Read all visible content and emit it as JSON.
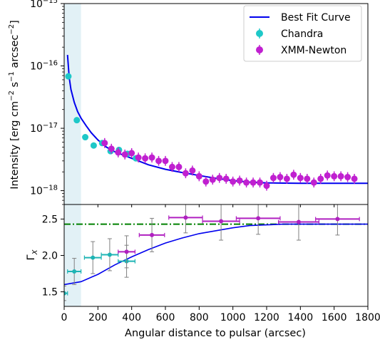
{
  "chart_data": [
    {
      "type": "scatter",
      "panel": "top",
      "xlabel": "",
      "ylabel": "Intensity [erg cm⁻² s⁻¹ arcsec⁻²]",
      "ylabel_parts": [
        "Intensity [erg cm",
        "−2",
        " s",
        "−1",
        " arcsec",
        "−2",
        "]"
      ],
      "yscale": "log",
      "xlim": [
        0,
        1800
      ],
      "ylim": [
        6e-19,
        1e-15
      ],
      "ytick_labels": [
        {
          "value": 1e-18,
          "base": "10",
          "exp": "−18"
        },
        {
          "value": 1e-17,
          "base": "10",
          "exp": "−17"
        },
        {
          "value": 1e-16,
          "base": "10",
          "exp": "−16"
        },
        {
          "value": 1e-15,
          "base": "10",
          "exp": "−15"
        }
      ],
      "shaded_region": [
        0,
        100
      ],
      "legend_position": "top-right",
      "series": [
        {
          "name": "Best Fit Curve",
          "kind": "line",
          "color": "#0000ee",
          "x": [
            20,
            30,
            40,
            60,
            80,
            100,
            130,
            160,
            200,
            250,
            300,
            400,
            500,
            600,
            700,
            800,
            900,
            1000,
            1100,
            1200,
            1300,
            1400,
            1500,
            1600,
            1700,
            1800
          ],
          "y": [
            1.5e-16,
            6.5e-17,
            4.2e-17,
            2.6e-17,
            1.85e-17,
            1.45e-17,
            1.1e-17,
            8.5e-18,
            6.5e-18,
            5e-18,
            4.2e-18,
            3.3e-18,
            2.6e-18,
            2.2e-18,
            1.95e-18,
            1.75e-18,
            1.58e-18,
            1.45e-18,
            1.37e-18,
            1.33e-18,
            1.32e-18,
            1.31e-18,
            1.31e-18,
            1.31e-18,
            1.31e-18,
            1.31e-18
          ]
        },
        {
          "name": "Chandra",
          "kind": "errorbar",
          "color": "#1ec8c8",
          "x": [
            25,
            75,
            125,
            175,
            225,
            275,
            325,
            375,
            425
          ],
          "y": [
            6.8e-17,
            1.35e-17,
            7.2e-18,
            5.3e-18,
            5.8e-18,
            4.3e-18,
            4.5e-18,
            3.9e-18,
            3.3e-18
          ]
        },
        {
          "name": "XMM-Newton",
          "kind": "errorbar",
          "color": "#c020d0",
          "x": [
            240,
            280,
            320,
            360,
            400,
            440,
            480,
            520,
            560,
            600,
            640,
            680,
            720,
            760,
            800,
            840,
            880,
            920,
            960,
            1000,
            1040,
            1080,
            1120,
            1160,
            1200,
            1240,
            1280,
            1320,
            1360,
            1400,
            1440,
            1480,
            1520,
            1560,
            1600,
            1640,
            1680,
            1720
          ],
          "y": [
            5.8e-18,
            4.7e-18,
            4.1e-18,
            3.8e-18,
            4e-18,
            3.4e-18,
            3.3e-18,
            3.4e-18,
            3e-18,
            3e-18,
            2.4e-18,
            2.4e-18,
            1.9e-18,
            2.1e-18,
            1.7e-18,
            1.4e-18,
            1.5e-18,
            1.6e-18,
            1.55e-18,
            1.4e-18,
            1.45e-18,
            1.35e-18,
            1.35e-18,
            1.35e-18,
            1.2e-18,
            1.6e-18,
            1.65e-18,
            1.55e-18,
            1.8e-18,
            1.6e-18,
            1.55e-18,
            1.35e-18,
            1.55e-18,
            1.75e-18,
            1.7e-18,
            1.7e-18,
            1.65e-18,
            1.55e-18
          ],
          "err_factor": 1.2
        }
      ]
    },
    {
      "type": "scatter",
      "panel": "bottom",
      "xlabel": "Angular distance to pulsar (arcsec)",
      "ylabel": "Γ",
      "ylabel_sub": "X",
      "xlim": [
        0,
        1800
      ],
      "ylim": [
        1.3,
        2.7
      ],
      "xticks": [
        0,
        200,
        400,
        600,
        800,
        1000,
        1200,
        1400,
        1600,
        1800
      ],
      "yticks": [
        1.5,
        2.0,
        2.5
      ],
      "ytick_labels": [
        "1.5",
        "2.0",
        "2.5"
      ],
      "shaded_region": [
        0,
        100
      ],
      "reference_line": {
        "y": 2.43,
        "color": "#008000",
        "style": "dash-dot"
      },
      "series": [
        {
          "name": "Best Fit Curve",
          "kind": "line",
          "color": "#0000ee",
          "x": [
            0,
            100,
            200,
            300,
            400,
            500,
            600,
            700,
            800,
            900,
            1000,
            1100,
            1200,
            1300,
            1400,
            1500,
            1600,
            1700,
            1800
          ],
          "y": [
            1.6,
            1.64,
            1.74,
            1.87,
            1.98,
            2.08,
            2.17,
            2.24,
            2.3,
            2.34,
            2.38,
            2.41,
            2.42,
            2.43,
            2.43,
            2.43,
            2.43,
            2.43,
            2.43
          ]
        },
        {
          "name": "Chandra",
          "kind": "errorbar",
          "color": "#1eb4b4",
          "x": [
            0,
            60,
            170,
            270,
            370
          ],
          "y": [
            1.48,
            1.78,
            1.97,
            2.01,
            1.92
          ],
          "xerr": [
            20,
            40,
            50,
            50,
            50
          ],
          "yerr": [
            0.1,
            0.18,
            0.22,
            0.22,
            0.22
          ]
        },
        {
          "name": "XMM-Newton",
          "kind": "errorbar",
          "color": "#b020c0",
          "x": [
            370,
            520,
            720,
            930,
            1150,
            1390,
            1620
          ],
          "y": [
            2.05,
            2.28,
            2.52,
            2.47,
            2.51,
            2.46,
            2.5
          ],
          "xerr": [
            50,
            75,
            100,
            110,
            130,
            120,
            130
          ],
          "yerr": [
            0.22,
            0.23,
            0.21,
            0.26,
            0.22,
            0.25,
            0.22
          ]
        }
      ]
    }
  ]
}
